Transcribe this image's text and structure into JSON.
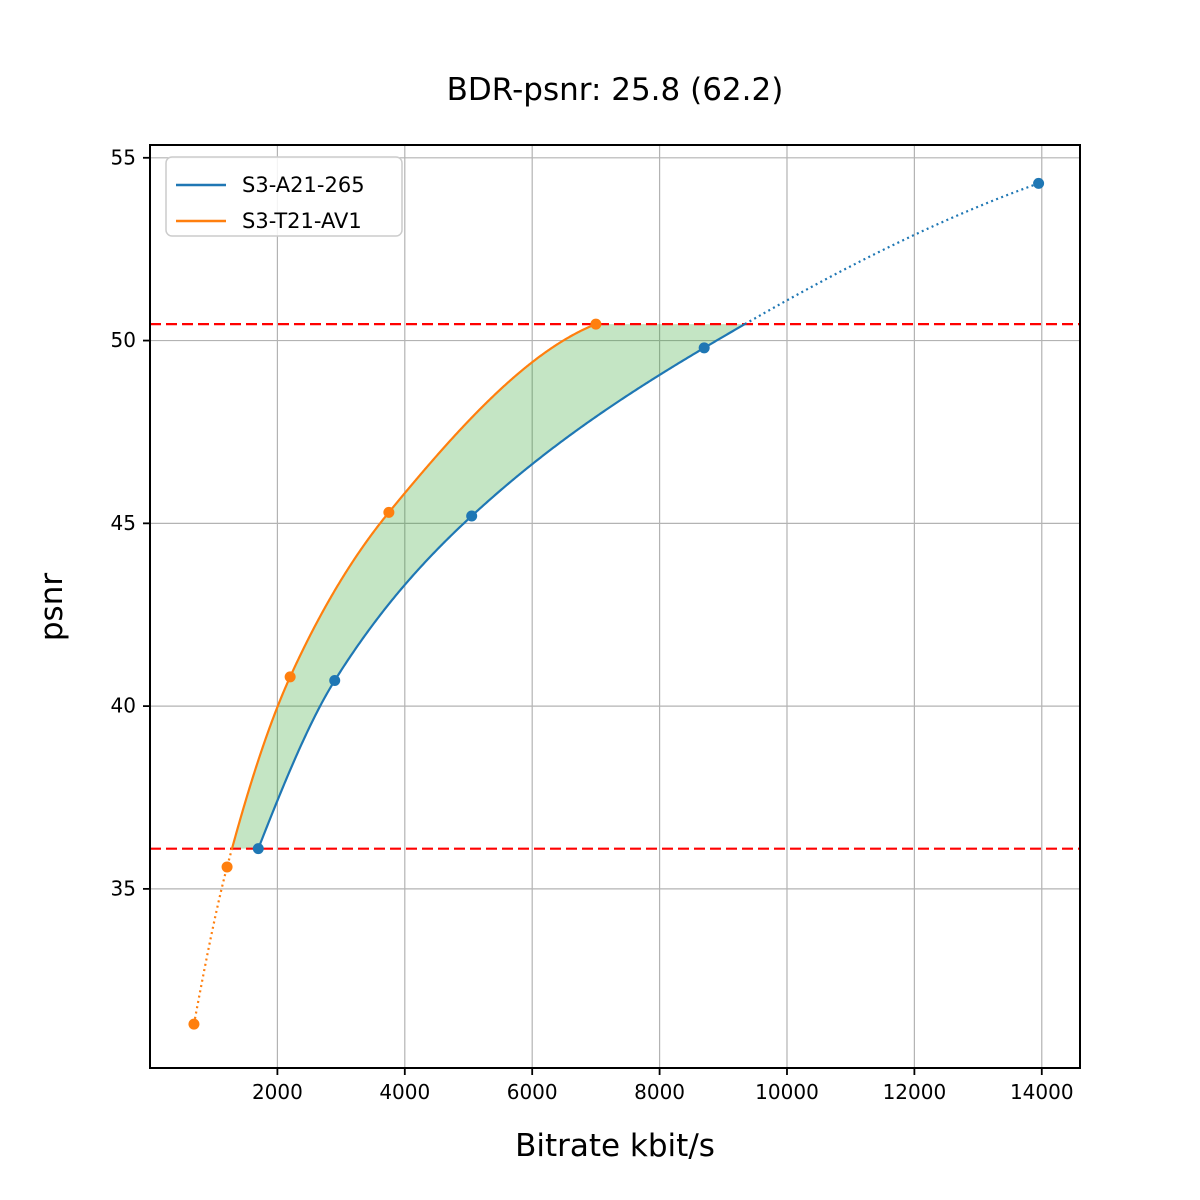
{
  "chart_data": {
    "type": "line",
    "title": "BDR-psnr: 25.8 (62.2)",
    "xlabel": "Bitrate kbit/s",
    "ylabel": "psnr",
    "xlim": [
      0,
      14600
    ],
    "ylim": [
      30.1,
      55.35
    ],
    "xticks": [
      2000,
      4000,
      6000,
      8000,
      10000,
      12000,
      14000
    ],
    "yticks": [
      35,
      40,
      45,
      50,
      55
    ],
    "grid": true,
    "grid_color": "#b3b3b3",
    "legend_position": "upper left",
    "series": [
      {
        "name": "S3-A21-265",
        "color": "#1f77b4",
        "marker": "circle",
        "x": [
          1700,
          2900,
          5050,
          8700,
          13950
        ],
        "y": [
          36.1,
          40.7,
          45.2,
          49.8,
          54.3
        ]
      },
      {
        "name": "S3-T21-AV1",
        "color": "#ff7f0e",
        "marker": "circle",
        "x": [
          690,
          1210,
          2200,
          3750,
          7000
        ],
        "y": [
          31.3,
          35.6,
          40.8,
          45.3,
          50.45
        ]
      }
    ],
    "hlines": [
      {
        "y": 36.1,
        "color": "#ff0000",
        "style": "dashed",
        "meaning": "low quality overlap bound"
      },
      {
        "y": 50.45,
        "color": "#ff0000",
        "style": "dashed",
        "meaning": "high quality overlap bound"
      }
    ],
    "shaded_region": {
      "between_series": [
        "S3-T21-AV1",
        "S3-A21-265"
      ],
      "psnr_range": [
        36.1,
        50.45
      ],
      "color": "#2ca02c",
      "alpha": 0.28
    },
    "line_style_note": "curves solid inside psnr_range, dotted outside"
  }
}
